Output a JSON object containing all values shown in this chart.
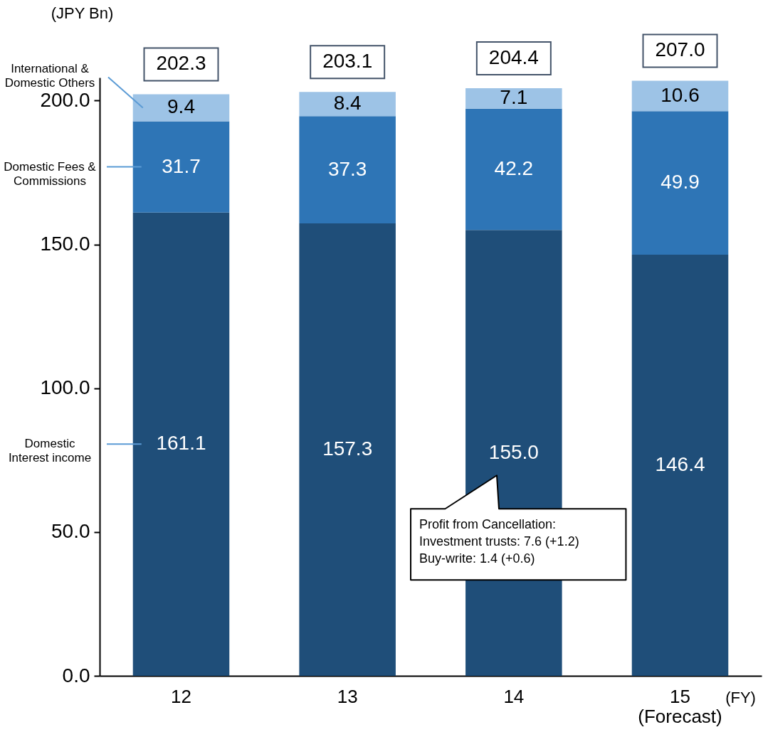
{
  "chart_data": {
    "type": "bar",
    "stacked": true,
    "ylabel": "(JPY Bn)",
    "xlabel": "(FY)",
    "categories": [
      "12",
      "13",
      "14",
      "15\n(Forecast)"
    ],
    "series": [
      {
        "name": "Domestic Interest income",
        "color": "#1f4e79",
        "values": [
          161.1,
          157.3,
          155.0,
          146.4
        ],
        "value_labels": [
          "161.1",
          "157.3",
          "155.0",
          "146.4"
        ]
      },
      {
        "name": "Domestic Fees & Commissions",
        "color": "#2e75b6",
        "values": [
          31.7,
          37.3,
          42.2,
          49.9
        ],
        "value_labels": [
          "31.7",
          "37.3",
          "42.2",
          "49.9"
        ]
      },
      {
        "name": "International & Domestic Others",
        "color": "#9dc3e6",
        "values": [
          9.4,
          8.4,
          7.1,
          10.6
        ],
        "value_labels": [
          "9.4",
          "8.4",
          "7.1",
          "10.6"
        ]
      }
    ],
    "ylim": [
      0,
      208
    ],
    "yticks": [
      {
        "value": 0,
        "label": "0.0"
      },
      {
        "value": 50,
        "label": "50.0"
      },
      {
        "value": 100,
        "label": "100.0"
      },
      {
        "value": 150,
        "label": "150.0"
      },
      {
        "value": 200,
        "label": "200.0"
      }
    ],
    "totals": [
      "202.3",
      "203.1",
      "204.4",
      "207.0"
    ],
    "annotations": [
      "Profit from Cancellation:\nInvestment trusts: 7.6 (+1.2)\nBuy-write: 1.4 (+0.6)"
    ]
  }
}
